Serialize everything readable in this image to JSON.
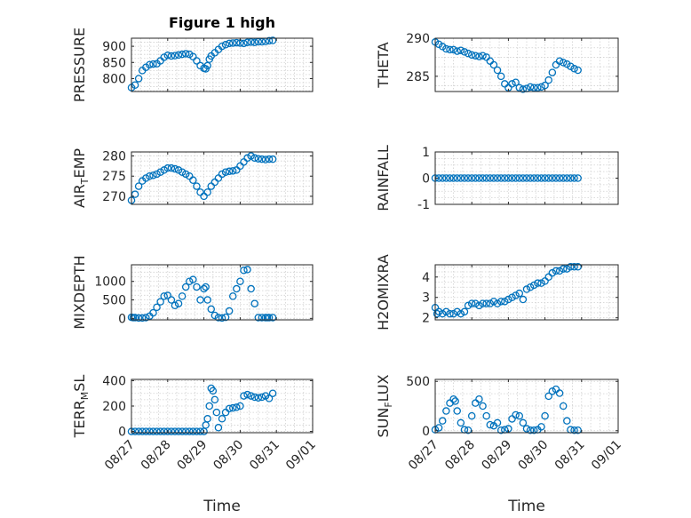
{
  "figure": {
    "title": "Figure 1 high",
    "marker_color": "#0072BD",
    "x_tick_labels": [
      "08/27",
      "08/28",
      "08/29",
      "08/30",
      "08/31",
      "09/01"
    ]
  },
  "chart_data": [
    {
      "type": "scatter",
      "id": "pressure",
      "title": "Figure 1 high",
      "ylabel": "PRESSURE",
      "xlabel": "",
      "x_unit": "day of August 2024 (08/27 = 27)",
      "xlim": [
        27,
        32
      ],
      "ylim": [
        760,
        925
      ],
      "yticks": [
        800,
        850,
        900
      ],
      "grid": true,
      "x": [
        27.0,
        27.1,
        27.2,
        27.3,
        27.4,
        27.5,
        27.6,
        27.7,
        27.8,
        27.9,
        28.0,
        28.1,
        28.2,
        28.3,
        28.4,
        28.5,
        28.6,
        28.7,
        28.8,
        28.9,
        29.0,
        29.05,
        29.1,
        29.15,
        29.2,
        29.3,
        29.4,
        29.5,
        29.6,
        29.7,
        29.8,
        29.9,
        30.0,
        30.1,
        30.2,
        30.3,
        30.4,
        30.5,
        30.6,
        30.7,
        30.8,
        30.9
      ],
      "y": [
        772,
        780,
        800,
        825,
        835,
        843,
        845,
        846,
        855,
        866,
        872,
        870,
        871,
        873,
        875,
        877,
        875,
        868,
        855,
        840,
        832,
        830,
        840,
        860,
        870,
        880,
        890,
        900,
        905,
        909,
        910,
        911,
        910,
        909,
        912,
        913,
        912,
        914,
        914,
        915,
        917,
        918
      ]
    },
    {
      "type": "scatter",
      "id": "theta",
      "title": "",
      "ylabel": "THETA",
      "xlabel": "",
      "x_unit": "day of August 2024 (08/27 = 27)",
      "xlim": [
        27,
        32
      ],
      "ylim": [
        283,
        290
      ],
      "yticks": [
        285,
        290
      ],
      "grid": true,
      "x": [
        27.0,
        27.1,
        27.2,
        27.3,
        27.4,
        27.5,
        27.6,
        27.7,
        27.8,
        27.9,
        28.0,
        28.1,
        28.2,
        28.3,
        28.4,
        28.5,
        28.6,
        28.7,
        28.8,
        28.9,
        29.0,
        29.1,
        29.2,
        29.3,
        29.4,
        29.5,
        29.6,
        29.7,
        29.8,
        29.9,
        30.0,
        30.1,
        30.2,
        30.3,
        30.4,
        30.5,
        30.6,
        30.7,
        30.8,
        30.9
      ],
      "y": [
        289.5,
        289.2,
        288.9,
        288.6,
        288.5,
        288.5,
        288.3,
        288.4,
        288.2,
        288.0,
        287.8,
        287.7,
        287.6,
        287.7,
        287.5,
        287.0,
        286.5,
        285.8,
        285.0,
        284.0,
        283.5,
        284.0,
        284.2,
        283.5,
        283.3,
        283.4,
        283.6,
        283.5,
        283.5,
        283.6,
        283.8,
        284.5,
        285.5,
        286.5,
        287.0,
        286.8,
        286.6,
        286.3,
        286.0,
        285.8
      ]
    },
    {
      "type": "scatter",
      "id": "air_temp",
      "title": "",
      "ylabel": "AIR",
      "ylabel_sub": "T",
      "ylabel_suffix": "EMP",
      "xlabel": "",
      "x_unit": "day of August 2024 (08/27 = 27)",
      "xlim": [
        27,
        32
      ],
      "ylim": [
        268,
        281
      ],
      "yticks": [
        270,
        275,
        280
      ],
      "grid": true,
      "x": [
        27.0,
        27.1,
        27.2,
        27.3,
        27.4,
        27.5,
        27.6,
        27.7,
        27.8,
        27.9,
        28.0,
        28.1,
        28.2,
        28.3,
        28.4,
        28.5,
        28.6,
        28.7,
        28.8,
        28.9,
        29.0,
        29.1,
        29.2,
        29.3,
        29.4,
        29.5,
        29.6,
        29.7,
        29.8,
        29.9,
        30.0,
        30.1,
        30.2,
        30.3,
        30.4,
        30.5,
        30.6,
        30.7,
        30.8,
        30.9
      ],
      "y": [
        269.0,
        270.5,
        272.5,
        273.8,
        274.5,
        275.0,
        275.2,
        275.5,
        276.0,
        276.5,
        277.0,
        277.0,
        276.8,
        276.5,
        276.0,
        275.5,
        275.0,
        274.0,
        272.5,
        271.0,
        270.0,
        271.0,
        272.5,
        273.5,
        274.5,
        275.5,
        276.0,
        276.2,
        276.3,
        276.5,
        277.5,
        278.5,
        279.5,
        280.0,
        279.5,
        279.3,
        279.2,
        279.1,
        279.2,
        279.2
      ]
    },
    {
      "type": "scatter",
      "id": "rainfall",
      "title": "",
      "ylabel": "RAINFALL",
      "xlabel": "",
      "x_unit": "day of August 2024 (08/27 = 27)",
      "xlim": [
        27,
        32
      ],
      "ylim": [
        -1,
        1
      ],
      "yticks": [
        -1,
        0,
        1
      ],
      "grid": true,
      "x": [
        27.0,
        27.1,
        27.2,
        27.3,
        27.4,
        27.5,
        27.6,
        27.7,
        27.8,
        27.9,
        28.0,
        28.1,
        28.2,
        28.3,
        28.4,
        28.5,
        28.6,
        28.7,
        28.8,
        28.9,
        29.0,
        29.1,
        29.2,
        29.3,
        29.4,
        29.5,
        29.6,
        29.7,
        29.8,
        29.9,
        30.0,
        30.1,
        30.2,
        30.3,
        30.4,
        30.5,
        30.6,
        30.7,
        30.8,
        30.9
      ],
      "y": [
        0,
        0,
        0,
        0,
        0,
        0,
        0,
        0,
        0,
        0,
        0,
        0,
        0,
        0,
        0,
        0,
        0,
        0,
        0,
        0,
        0,
        0,
        0,
        0,
        0,
        0,
        0,
        0,
        0,
        0,
        0,
        0,
        0,
        0,
        0,
        0,
        0,
        0,
        0,
        0
      ]
    },
    {
      "type": "scatter",
      "id": "mixdepth",
      "title": "",
      "ylabel": "MIXDEPTH",
      "xlabel": "",
      "x_unit": "day of August 2024 (08/27 = 27)",
      "xlim": [
        27,
        32
      ],
      "ylim": [
        -40,
        1450
      ],
      "yticks": [
        0,
        500,
        1000
      ],
      "grid": true,
      "x": [
        27.0,
        27.05,
        27.1,
        27.2,
        27.3,
        27.4,
        27.5,
        27.6,
        27.7,
        27.8,
        27.9,
        28.0,
        28.1,
        28.2,
        28.3,
        28.4,
        28.5,
        28.6,
        28.7,
        28.8,
        28.9,
        29.0,
        29.05,
        29.1,
        29.2,
        29.3,
        29.4,
        29.5,
        29.6,
        29.7,
        29.8,
        29.9,
        30.0,
        30.1,
        30.2,
        30.3,
        30.4,
        30.5,
        30.6,
        30.7,
        30.75,
        30.8,
        30.9
      ],
      "y": [
        30,
        20,
        20,
        10,
        10,
        20,
        60,
        150,
        300,
        450,
        600,
        620,
        500,
        350,
        400,
        600,
        850,
        1000,
        1050,
        850,
        500,
        800,
        850,
        500,
        250,
        80,
        20,
        10,
        30,
        200,
        600,
        800,
        1000,
        1300,
        1320,
        800,
        400,
        20,
        20,
        20,
        20,
        20,
        20
      ]
    },
    {
      "type": "scatter",
      "id": "h2omixra",
      "title": "",
      "ylabel": "H2OMIXRA",
      "xlabel": "",
      "x_unit": "day of August 2024 (08/27 = 27)",
      "xlim": [
        27,
        32
      ],
      "ylim": [
        1.9,
        4.6
      ],
      "yticks": [
        2,
        3,
        4
      ],
      "grid": true,
      "x": [
        27.0,
        27.05,
        27.1,
        27.2,
        27.3,
        27.4,
        27.5,
        27.6,
        27.7,
        27.8,
        27.9,
        28.0,
        28.1,
        28.2,
        28.3,
        28.4,
        28.5,
        28.6,
        28.7,
        28.8,
        28.9,
        29.0,
        29.1,
        29.2,
        29.3,
        29.4,
        29.5,
        29.6,
        29.7,
        29.8,
        29.9,
        30.0,
        30.1,
        30.2,
        30.3,
        30.4,
        30.5,
        30.6,
        30.7,
        30.8,
        30.9
      ],
      "y": [
        2.5,
        2.2,
        2.3,
        2.2,
        2.3,
        2.2,
        2.2,
        2.3,
        2.2,
        2.3,
        2.6,
        2.7,
        2.7,
        2.6,
        2.7,
        2.7,
        2.7,
        2.8,
        2.7,
        2.8,
        2.8,
        2.9,
        3.0,
        3.1,
        3.2,
        2.9,
        3.4,
        3.5,
        3.6,
        3.7,
        3.7,
        3.8,
        4.0,
        4.2,
        4.3,
        4.3,
        4.4,
        4.4,
        4.5,
        4.5,
        4.5
      ]
    },
    {
      "type": "scatter",
      "id": "terr_msl",
      "title": "",
      "ylabel": "TERR",
      "ylabel_sub": "M",
      "ylabel_suffix": "SL",
      "xlabel": "Time",
      "x_unit": "day of August 2024 (08/27 = 27)",
      "xlim": [
        27,
        32
      ],
      "ylim": [
        -10,
        410
      ],
      "yticks": [
        0,
        200,
        400
      ],
      "grid": true,
      "x": [
        27.0,
        27.1,
        27.2,
        27.3,
        27.4,
        27.5,
        27.6,
        27.7,
        27.8,
        27.9,
        28.0,
        28.1,
        28.2,
        28.3,
        28.4,
        28.5,
        28.6,
        28.7,
        28.8,
        28.9,
        29.0,
        29.05,
        29.1,
        29.15,
        29.2,
        29.25,
        29.3,
        29.35,
        29.4,
        29.5,
        29.6,
        29.7,
        29.8,
        29.9,
        30.0,
        30.1,
        30.2,
        30.3,
        30.4,
        30.5,
        30.6,
        30.7,
        30.8,
        30.9
      ],
      "y": [
        0,
        0,
        0,
        0,
        0,
        0,
        0,
        0,
        0,
        0,
        0,
        0,
        0,
        0,
        0,
        0,
        0,
        0,
        0,
        0,
        0,
        50,
        100,
        200,
        340,
        320,
        250,
        150,
        30,
        100,
        150,
        180,
        185,
        190,
        200,
        280,
        290,
        280,
        270,
        265,
        270,
        280,
        260,
        300
      ]
    },
    {
      "type": "scatter",
      "id": "sun_flux",
      "title": "",
      "ylabel": "SUN",
      "ylabel_sub": "F",
      "ylabel_suffix": "LUX",
      "xlabel": "Time",
      "x_unit": "day of August 2024 (08/27 = 27)",
      "xlim": [
        27,
        32
      ],
      "ylim": [
        -20,
        520
      ],
      "yticks": [
        0,
        500
      ],
      "grid": true,
      "x": [
        27.0,
        27.1,
        27.2,
        27.3,
        27.4,
        27.5,
        27.55,
        27.6,
        27.7,
        27.8,
        27.9,
        28.0,
        28.1,
        28.2,
        28.3,
        28.4,
        28.5,
        28.6,
        28.7,
        28.8,
        28.9,
        29.0,
        29.1,
        29.2,
        29.3,
        29.4,
        29.5,
        29.6,
        29.7,
        29.8,
        29.9,
        30.0,
        30.1,
        30.2,
        30.3,
        30.4,
        30.5,
        30.6,
        30.7,
        30.8,
        30.9
      ],
      "y": [
        10,
        30,
        100,
        200,
        280,
        320,
        300,
        200,
        80,
        10,
        5,
        150,
        280,
        320,
        250,
        150,
        60,
        50,
        80,
        5,
        10,
        20,
        120,
        160,
        150,
        80,
        20,
        5,
        5,
        10,
        40,
        150,
        350,
        400,
        420,
        380,
        250,
        100,
        10,
        5,
        5
      ]
    }
  ]
}
